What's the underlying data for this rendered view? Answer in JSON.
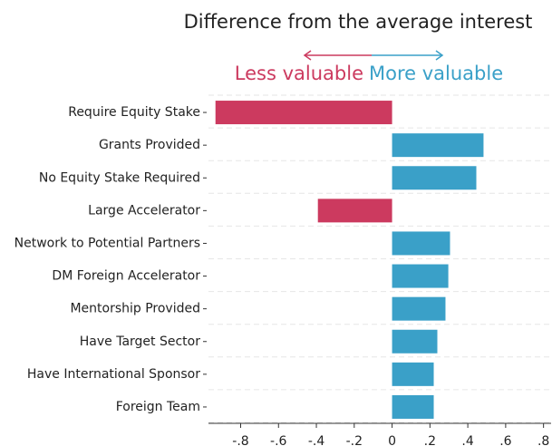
{
  "chart_data": {
    "type": "bar",
    "orientation": "horizontal",
    "title": "Difference from the average interest",
    "annotations": {
      "negative": "Less valuable",
      "positive": "More valuable"
    },
    "categories": [
      "Require Equity Stake",
      "Grants Provided",
      "No Equity Stake Required",
      "Large Accelerator",
      "Network to Potential Partners",
      "DM Foreign Accelerator",
      "Mentorship Provided",
      "Have Target Sector",
      "Have International Sponsor",
      "Foreign Team"
    ],
    "values": [
      -0.933,
      0.483,
      0.445,
      -0.392,
      0.306,
      0.297,
      0.282,
      0.239,
      0.22,
      0.22
    ],
    "negative_color": "#cc3a5f",
    "positive_color": "#3aa0c8",
    "xlim": [
      -0.97,
      0.84
    ],
    "xticks": [
      {
        "value": -0.8,
        "label": "-.8"
      },
      {
        "value": -0.6,
        "label": "-.6"
      },
      {
        "value": -0.4,
        "label": "-.4"
      },
      {
        "value": -0.2,
        "label": "-.2"
      },
      0,
      {
        "value": 0.2,
        "label": ".2"
      },
      {
        "value": 0.4,
        "label": ".4"
      },
      {
        "value": 0.6,
        "label": ".6"
      },
      {
        "value": 0.8,
        "label": ".8"
      }
    ],
    "grid": true
  }
}
